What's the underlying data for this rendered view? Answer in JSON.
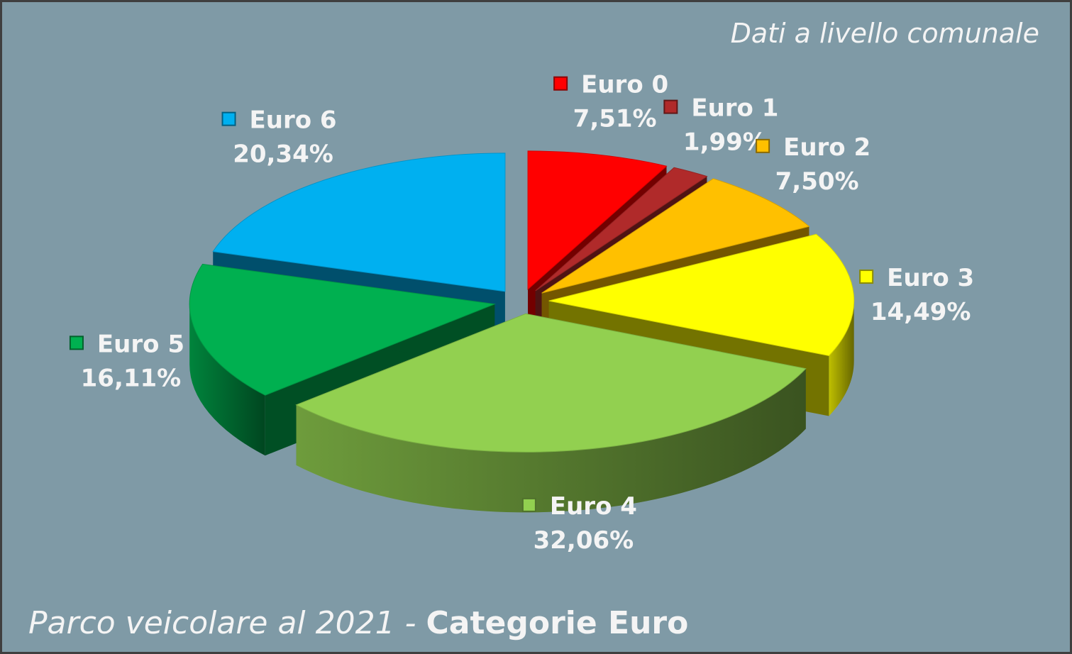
{
  "chart_data": {
    "type": "pie3d",
    "title": [
      "Parco veicolare al 2021 -",
      "Categorie Euro"
    ],
    "subtitle": "Dati a livello comunale",
    "categories": [
      "Euro 0",
      "Euro 1",
      "Euro 2",
      "Euro 3",
      "Euro 4",
      "Euro 5",
      "Euro 6"
    ],
    "values": [
      7.51,
      1.99,
      7.5,
      14.49,
      32.06,
      16.11,
      20.34
    ],
    "value_labels": [
      "7,51%",
      "1,99%",
      "7,50%",
      "14,49%",
      "32,06%",
      "16,11%",
      "20,34%"
    ],
    "colors": [
      "#ff0000",
      "#b02a2a",
      "#ffc000",
      "#ffff00",
      "#92d050",
      "#00b050",
      "#00b0f0"
    ]
  }
}
